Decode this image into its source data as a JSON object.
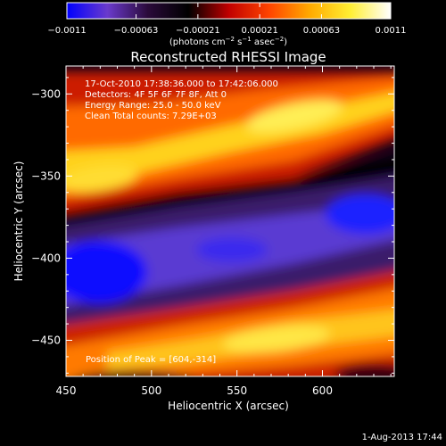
{
  "chart_data": {
    "type": "heatmap",
    "title": "Reconstructed RHESSI Image",
    "xlabel": "Heliocentric X (arcsec)",
    "ylabel": "Heliocentric Y (arcsec)",
    "xlim": [
      450,
      642
    ],
    "ylim": [
      -472,
      -283
    ],
    "x_ticks": [
      450,
      500,
      550,
      600
    ],
    "y_ticks": [
      -300,
      -350,
      -400,
      -450
    ],
    "x_tick_labels": [
      "450",
      "500",
      "550",
      "600"
    ],
    "y_tick_labels": [
      "−300",
      "−350",
      "−400",
      "−450"
    ],
    "colorbar": {
      "min": -0.0011,
      "max": 0.0011,
      "ticks": [
        -0.0011,
        -0.00063,
        -0.00021,
        0.00021,
        0.00063,
        0.0011
      ],
      "tick_labels": [
        "−0.0011",
        "−0.00063",
        "−0.00021",
        "0.00021",
        "0.00063",
        "0.0011"
      ],
      "units_prefix": "(photons cm",
      "units_exp1": "−2",
      "units_mid1": " s",
      "units_exp2": "−1",
      "units_mid2": " asec",
      "units_exp3": "−2",
      "units_suffix": ")",
      "colors": [
        "#0000ff",
        "#6a3acc",
        "#2a0a3a",
        "#000000",
        "#c00000",
        "#ff4400",
        "#ffaa00",
        "#ffee33",
        "#ffffff"
      ]
    },
    "info_lines": [
      "17-Oct-2010 17:38:36.000 to 17:42:06.000",
      "Detectors: 4F 5F 6F 7F 8F, Att 0",
      "Energy Range: 25.0 - 50.0 keV",
      "Clean     Total counts: 7.29E+03"
    ],
    "peak_label": "Position of Peak = [604,-314]",
    "peak_position": [
      604,
      -314
    ],
    "grid": false
  },
  "footer": {
    "timestamp": "1-Aug-2013 17:44"
  }
}
